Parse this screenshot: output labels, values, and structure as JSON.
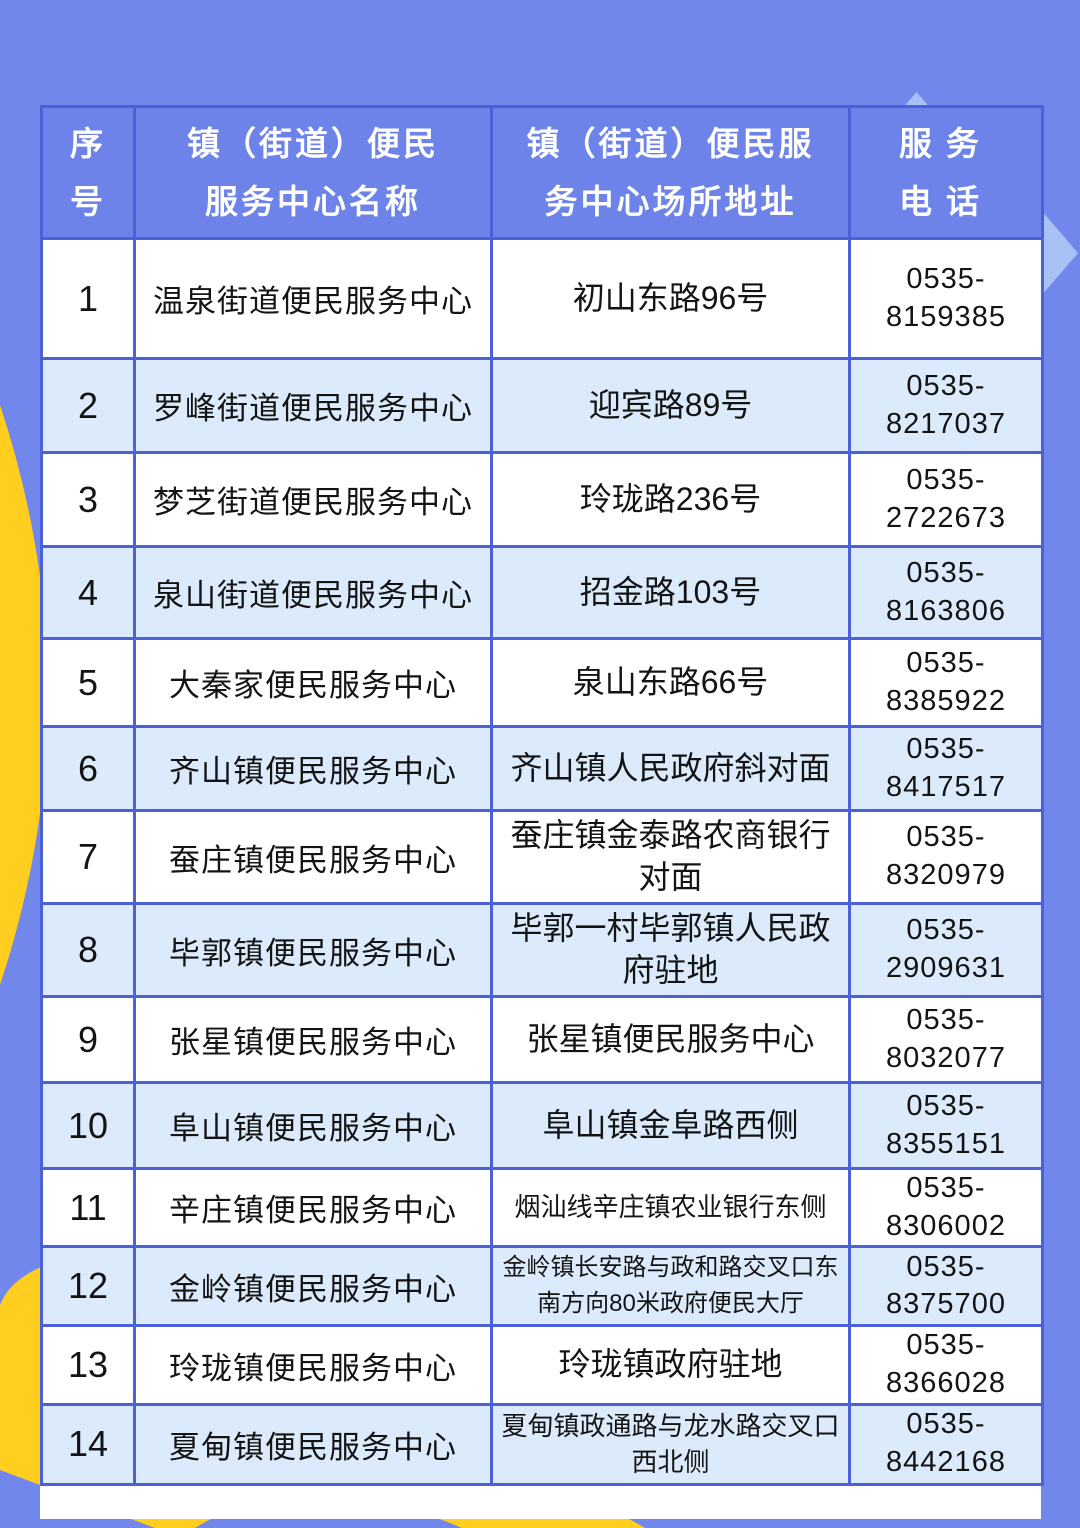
{
  "colors": {
    "page_bg": "#7187EC",
    "header_bg": "#6E83E9",
    "border": "#4C61D8",
    "row_alt": "#DCEBFC",
    "row_white": "#FFFFFF",
    "accent_yellow": "#FFCE1E",
    "triangle_blue": "#A9C2F6",
    "header_text": "#FFFFFF",
    "body_text": "#141414"
  },
  "decorations": {
    "icons": [
      "triangle-up-icon",
      "triangle-right-icon",
      "yellow-circle-shape",
      "yellow-wave-shape",
      "blue-wave-shape"
    ]
  },
  "table": {
    "columns": [
      {
        "key": "index",
        "label": "序\n号"
      },
      {
        "key": "name",
        "label": "镇（街道）便民\n服务中心名称"
      },
      {
        "key": "address",
        "label": "镇（街道）便民服\n务中心场所地址"
      },
      {
        "key": "phone",
        "label": "服务\n电话"
      }
    ],
    "rows": [
      {
        "index": "1",
        "name": "温泉街道便民服务中心",
        "address": "初山东路96号",
        "phone": "0535-8159385"
      },
      {
        "index": "2",
        "name": "罗峰街道便民服务中心",
        "address": "迎宾路89号",
        "phone": "0535-8217037"
      },
      {
        "index": "3",
        "name": "梦芝街道便民服务中心",
        "address": "玲珑路236号",
        "phone": "0535-2722673"
      },
      {
        "index": "4",
        "name": "泉山街道便民服务中心",
        "address": "招金路103号",
        "phone": "0535-8163806"
      },
      {
        "index": "5",
        "name": "大秦家便民服务中心",
        "address": "泉山东路66号",
        "phone": "0535-8385922"
      },
      {
        "index": "6",
        "name": "齐山镇便民服务中心",
        "address": "齐山镇人民政府斜对面",
        "phone": "0535-8417517"
      },
      {
        "index": "7",
        "name": "蚕庄镇便民服务中心",
        "address": "蚕庄镇金泰路农商银行对面",
        "phone": "0535-8320979"
      },
      {
        "index": "8",
        "name": "毕郭镇便民服务中心",
        "address": "毕郭一村毕郭镇人民政府驻地",
        "phone": "0535-2909631"
      },
      {
        "index": "9",
        "name": "张星镇便民服务中心",
        "address": "张星镇便民服务中心",
        "phone": "0535-8032077"
      },
      {
        "index": "10",
        "name": "阜山镇便民服务中心",
        "address": "阜山镇金阜路西侧",
        "phone": "0535-8355151"
      },
      {
        "index": "11",
        "name": "辛庄镇便民服务中心",
        "address": "烟汕线辛庄镇农业银行东侧",
        "phone": "0535-8306002",
        "address_size": "sm"
      },
      {
        "index": "12",
        "name": "金岭镇便民服务中心",
        "address": "金岭镇长安路与政和路交叉口东南方向80米政府便民大厅",
        "phone": "0535-8375700",
        "address_size": "xs"
      },
      {
        "index": "13",
        "name": "玲珑镇便民服务中心",
        "address": "玲珑镇政府驻地",
        "phone": "0535-8366028"
      },
      {
        "index": "14",
        "name": "夏甸镇便民服务中心",
        "address": "夏甸镇政通路与龙水路交叉口西北侧",
        "phone": "0535-8442168",
        "address_size": "sm"
      }
    ]
  }
}
